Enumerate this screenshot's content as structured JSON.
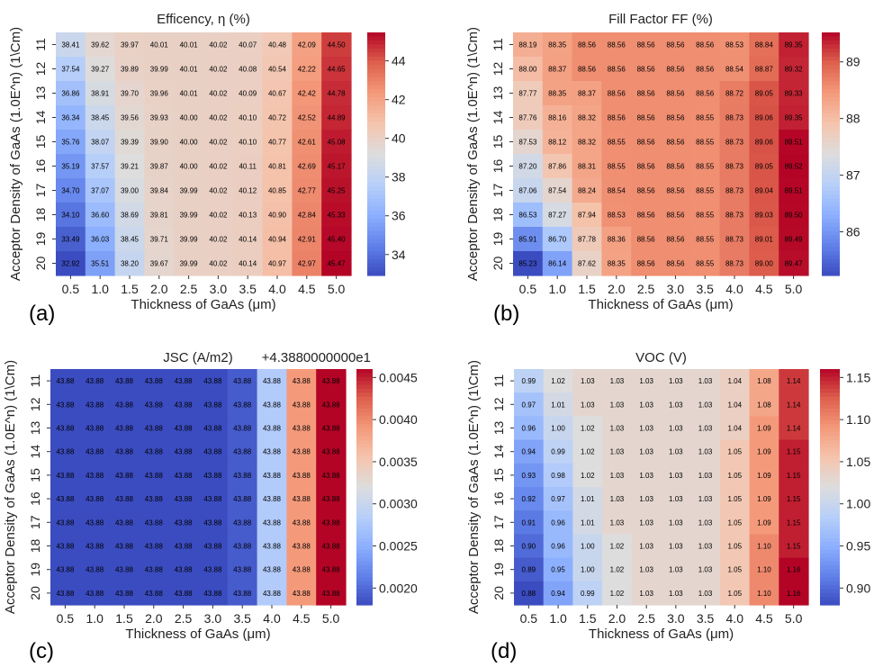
{
  "chart_data": [
    {
      "type": "heatmap",
      "panel_label": "(a)",
      "title": "Efficency, η (%)",
      "xlabel": "Thickness of GaAs (μm)",
      "ylabel": "Acceptor Density of GaAs (1.0E^n) (1\\Cm)",
      "x_ticks": [
        "0.5",
        "1.0",
        "1.5",
        "2.0",
        "2.5",
        "3.0",
        "3.5",
        "4.0",
        "4.5",
        "5.0"
      ],
      "y_ticks": [
        "11",
        "12",
        "13",
        "14",
        "15",
        "16",
        "17",
        "18",
        "19",
        "20"
      ],
      "colorbar": {
        "min": 32.92,
        "max": 45.47,
        "ticks": [
          34,
          36,
          38,
          40,
          42,
          44
        ],
        "tick_labels": [
          "34",
          "36",
          "38",
          "40",
          "42",
          "44"
        ],
        "offset_text": ""
      },
      "values": [
        [
          "38.41",
          "39.62",
          "39.97",
          "40.01",
          "40.01",
          "40.02",
          "40.07",
          "40.48",
          "42.09",
          "44.50"
        ],
        [
          "37.54",
          "39.27",
          "39.89",
          "39.99",
          "40.01",
          "40.02",
          "40.08",
          "40.54",
          "42.22",
          "44.65"
        ],
        [
          "36.86",
          "38.91",
          "39.70",
          "39.96",
          "40.01",
          "40.02",
          "40.09",
          "40.67",
          "42.42",
          "44.78"
        ],
        [
          "36.34",
          "38.45",
          "39.56",
          "39.93",
          "40.00",
          "40.02",
          "40.10",
          "40.72",
          "42.52",
          "44.89"
        ],
        [
          "35.76",
          "38.07",
          "39.39",
          "39.90",
          "40.00",
          "40.02",
          "40.10",
          "40.77",
          "42.61",
          "45.08"
        ],
        [
          "35.19",
          "37.57",
          "39.21",
          "39.87",
          "40.00",
          "40.02",
          "40.11",
          "40.81",
          "42.69",
          "45.17"
        ],
        [
          "34.70",
          "37.07",
          "39.00",
          "39.84",
          "39.99",
          "40.02",
          "40.12",
          "40.85",
          "42.77",
          "45.25"
        ],
        [
          "34.10",
          "36.60",
          "38.69",
          "39.81",
          "39.99",
          "40.02",
          "40.13",
          "40.90",
          "42.84",
          "45.33"
        ],
        [
          "33.49",
          "36.03",
          "38.45",
          "39.71",
          "39.99",
          "40.02",
          "40.14",
          "40.94",
          "42.91",
          "45.40"
        ],
        [
          "32.92",
          "35.51",
          "38.20",
          "39.67",
          "39.99",
          "40.02",
          "40.14",
          "40.97",
          "42.97",
          "45.47"
        ]
      ]
    },
    {
      "type": "heatmap",
      "panel_label": "(b)",
      "title": "Fill Factor FF (%)",
      "xlabel": "Thickness of GaAs (μm)",
      "ylabel": "Acceptor Density of GaAs (1.0E^n) (1\\Cm)",
      "x_ticks": [
        "0.5",
        "1.0",
        "1.5",
        "2.0",
        "2.5",
        "3.0",
        "3.5",
        "4.0",
        "4.5",
        "5.0"
      ],
      "y_ticks": [
        "11",
        "12",
        "13",
        "14",
        "15",
        "16",
        "17",
        "18",
        "19",
        "20"
      ],
      "colorbar": {
        "min": 85.23,
        "max": 89.52,
        "ticks": [
          86,
          87,
          88,
          89
        ],
        "tick_labels": [
          "86",
          "87",
          "88",
          "89"
        ],
        "offset_text": ""
      },
      "values": [
        [
          "88.19",
          "88.35",
          "88.56",
          "88.56",
          "88.56",
          "88.56",
          "88.56",
          "88.53",
          "88.84",
          "89.35"
        ],
        [
          "88.00",
          "88.37",
          "88.56",
          "88.56",
          "88.56",
          "88.56",
          "88.56",
          "88.54",
          "88.87",
          "89.32"
        ],
        [
          "87.77",
          "88.35",
          "88.37",
          "88.56",
          "88.56",
          "88.56",
          "88.56",
          "88.72",
          "89.05",
          "89.33"
        ],
        [
          "87.76",
          "88.16",
          "88.32",
          "88.56",
          "88.56",
          "88.56",
          "88.55",
          "88.73",
          "89.06",
          "89.35"
        ],
        [
          "87.53",
          "88.12",
          "88.32",
          "88.55",
          "88.56",
          "88.56",
          "88.55",
          "88.73",
          "89.06",
          "89.51"
        ],
        [
          "87.20",
          "87.86",
          "88.31",
          "88.55",
          "88.56",
          "88.56",
          "88.55",
          "88.73",
          "89.05",
          "89.52"
        ],
        [
          "87.06",
          "87.54",
          "88.24",
          "88.54",
          "88.56",
          "88.56",
          "88.55",
          "88.73",
          "89.04",
          "89.51"
        ],
        [
          "86.53",
          "87.27",
          "87.94",
          "88.53",
          "88.56",
          "88.56",
          "88.55",
          "88.73",
          "89.03",
          "89.50"
        ],
        [
          "85.91",
          "86.70",
          "87.78",
          "88.36",
          "88.56",
          "88.56",
          "88.55",
          "88.73",
          "89.01",
          "89.49"
        ],
        [
          "85.23",
          "86.14",
          "87.62",
          "88.35",
          "88.56",
          "88.56",
          "88.55",
          "88.73",
          "89.00",
          "89.47"
        ]
      ]
    },
    {
      "type": "heatmap",
      "panel_label": "(c)",
      "title": "JSC (A/m2)",
      "xlabel": "Thickness of GaAs (μm)",
      "ylabel": "Acceptor Density of GaAs (1.0E^n) (1\\Cm)",
      "x_ticks": [
        "0.5",
        "1.0",
        "1.5",
        "2.0",
        "2.5",
        "3.0",
        "3.5",
        "4.0",
        "4.5",
        "5.0"
      ],
      "y_ticks": [
        "11",
        "12",
        "13",
        "14",
        "15",
        "16",
        "17",
        "18",
        "19",
        "20"
      ],
      "colorbar": {
        "min": 0.0018,
        "max": 0.0046,
        "ticks": [
          0.002,
          0.0025,
          0.003,
          0.0035,
          0.004,
          0.0045
        ],
        "tick_labels": [
          "0.0020",
          "0.0025",
          "0.0030",
          "0.0035",
          "0.0040",
          "0.0045"
        ],
        "offset_text": "+4.3880000000e1"
      },
      "column_values": [
        0.0018,
        0.0018,
        0.0018,
        0.0018,
        0.0018,
        0.0018,
        0.0019,
        0.0028,
        0.0039,
        0.0046
      ],
      "values": [
        [
          "43.88",
          "43.88",
          "43.88",
          "43.88",
          "43.88",
          "43.88",
          "43.88",
          "43.88",
          "43.88",
          "43.88"
        ],
        [
          "43.88",
          "43.88",
          "43.88",
          "43.88",
          "43.88",
          "43.88",
          "43.88",
          "43.88",
          "43.88",
          "43.88"
        ],
        [
          "43.88",
          "43.88",
          "43.88",
          "43.88",
          "43.88",
          "43.88",
          "43.88",
          "43.88",
          "43.88",
          "43.88"
        ],
        [
          "43.88",
          "43.88",
          "43.88",
          "43.88",
          "43.88",
          "43.88",
          "43.88",
          "43.88",
          "43.88",
          "43.88"
        ],
        [
          "43.88",
          "43.88",
          "43.88",
          "43.88",
          "43.88",
          "43.88",
          "43.88",
          "43.88",
          "43.88",
          "43.88"
        ],
        [
          "43.88",
          "43.88",
          "43.88",
          "43.88",
          "43.88",
          "43.88",
          "43.88",
          "43.88",
          "43.88",
          "43.88"
        ],
        [
          "43.88",
          "43.88",
          "43.88",
          "43.88",
          "43.88",
          "43.88",
          "43.88",
          "43.88",
          "43.88",
          "43.88"
        ],
        [
          "43.88",
          "43.88",
          "43.88",
          "43.88",
          "43.88",
          "43.88",
          "43.88",
          "43.88",
          "43.88",
          "43.88"
        ],
        [
          "43.88",
          "43.88",
          "43.88",
          "43.88",
          "43.88",
          "43.88",
          "43.88",
          "43.88",
          "43.88",
          "43.88"
        ],
        [
          "43.88",
          "43.88",
          "43.88",
          "43.88",
          "43.88",
          "43.88",
          "43.88",
          "43.88",
          "43.88",
          "43.88"
        ]
      ]
    },
    {
      "type": "heatmap",
      "panel_label": "(d)",
      "title": "VOC (V)",
      "xlabel": "Thickness of GaAs (μm)",
      "ylabel": "Acceptor Density of GaAs (1.0E^n) (1\\Cm)",
      "x_ticks": [
        "0.5",
        "1.0",
        "1.5",
        "2.0",
        "2.5",
        "3.0",
        "3.5",
        "4.0",
        "4.5",
        "5.0"
      ],
      "y_ticks": [
        "11",
        "12",
        "13",
        "14",
        "15",
        "16",
        "17",
        "18",
        "19",
        "20"
      ],
      "colorbar": {
        "min": 0.88,
        "max": 1.16,
        "ticks": [
          0.9,
          0.95,
          1.0,
          1.05,
          1.1,
          1.15
        ],
        "tick_labels": [
          "0.90",
          "0.95",
          "1.00",
          "1.05",
          "1.10",
          "1.15"
        ],
        "offset_text": ""
      },
      "values": [
        [
          "0.99",
          "1.02",
          "1.03",
          "1.03",
          "1.03",
          "1.03",
          "1.03",
          "1.04",
          "1.08",
          "1.14"
        ],
        [
          "0.97",
          "1.01",
          "1.03",
          "1.03",
          "1.03",
          "1.03",
          "1.03",
          "1.04",
          "1.08",
          "1.14"
        ],
        [
          "0.96",
          "1.00",
          "1.02",
          "1.03",
          "1.03",
          "1.03",
          "1.03",
          "1.04",
          "1.09",
          "1.14"
        ],
        [
          "0.94",
          "0.99",
          "1.02",
          "1.03",
          "1.03",
          "1.03",
          "1.03",
          "1.05",
          "1.09",
          "1.15"
        ],
        [
          "0.93",
          "0.98",
          "1.02",
          "1.03",
          "1.03",
          "1.03",
          "1.03",
          "1.05",
          "1.09",
          "1.15"
        ],
        [
          "0.92",
          "0.97",
          "1.01",
          "1.03",
          "1.03",
          "1.03",
          "1.03",
          "1.05",
          "1.09",
          "1.15"
        ],
        [
          "0.91",
          "0.96",
          "1.01",
          "1.03",
          "1.03",
          "1.03",
          "1.03",
          "1.05",
          "1.09",
          "1.15"
        ],
        [
          "0.90",
          "0.96",
          "1.00",
          "1.02",
          "1.03",
          "1.03",
          "1.03",
          "1.05",
          "1.10",
          "1.15"
        ],
        [
          "0.89",
          "0.95",
          "1.00",
          "1.02",
          "1.03",
          "1.03",
          "1.03",
          "1.05",
          "1.10",
          "1.16"
        ],
        [
          "0.88",
          "0.94",
          "0.99",
          "1.02",
          "1.03",
          "1.03",
          "1.03",
          "1.05",
          "1.10",
          "1.16"
        ]
      ]
    }
  ]
}
